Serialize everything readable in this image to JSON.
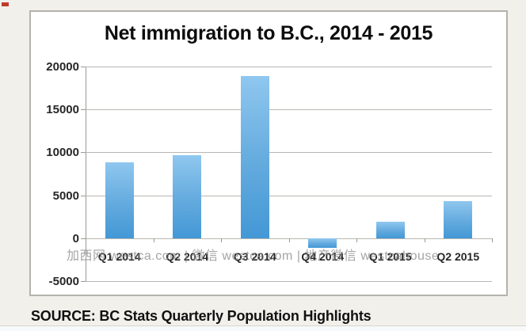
{
  "page": {
    "background_color": "#f2f0ea",
    "panel_border_color": "#b5b3ad",
    "corner_mark_color": "#c0392b"
  },
  "chart_data": {
    "type": "bar",
    "title": "Net immigration to B.C., 2014 - 2015",
    "categories": [
      "Q1 2014",
      "Q2 2014",
      "Q3 2014",
      "Q4 2014",
      "Q1 2015",
      "Q2 2015"
    ],
    "values": [
      8800,
      9700,
      18900,
      -1100,
      1900,
      4300
    ],
    "xlabel": "",
    "ylabel": "",
    "ylim": [
      -5000,
      20000
    ],
    "yticks": [
      20000,
      15000,
      10000,
      5000,
      0,
      -5000
    ],
    "grid": true,
    "legend": "none",
    "bar_color_top": "#8fc7ef",
    "bar_color_bottom": "#4398d6"
  },
  "watermark": {
    "text": "加西网 westca.com | 微信 westca.com | 地产微信 westcahouse"
  },
  "source_line": "SOURCE: BC Stats Quarterly Population Highlights"
}
